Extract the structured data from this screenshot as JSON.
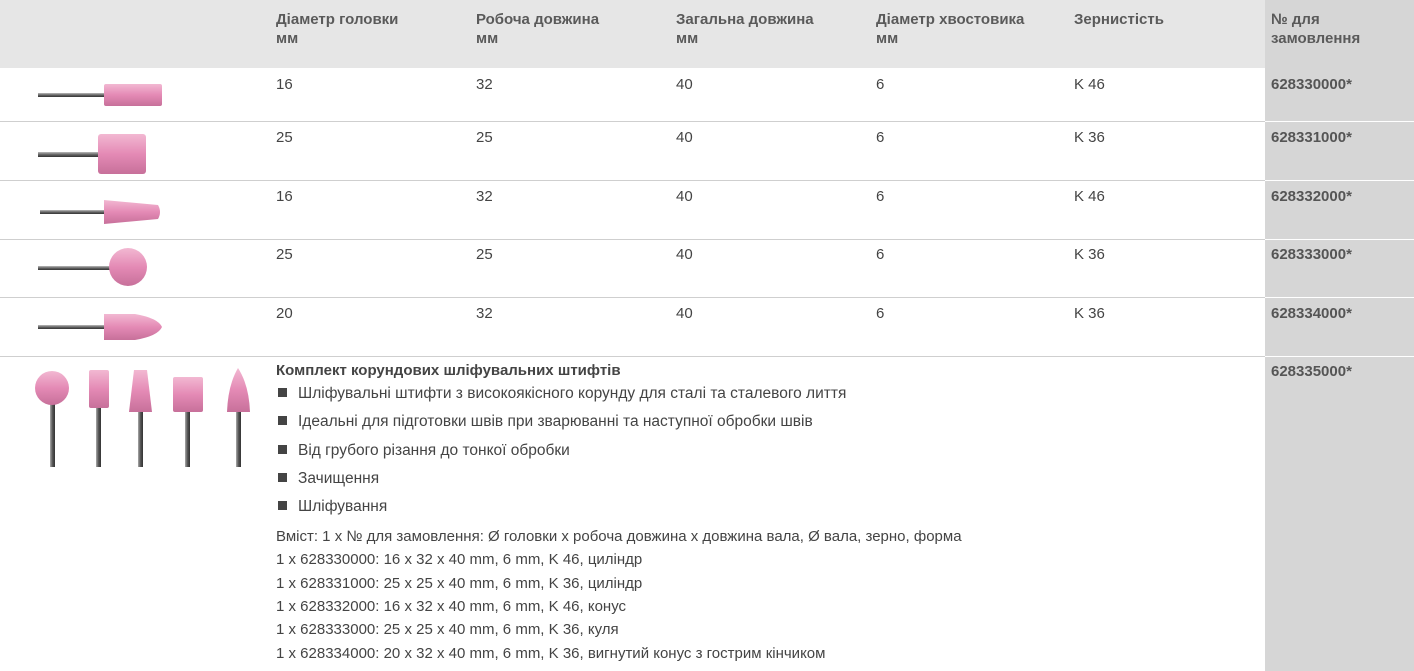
{
  "table": {
    "header": [
      [
        "Діаметр головки",
        "мм"
      ],
      [
        "Робоча довжина",
        "мм"
      ],
      [
        "Загальна довжина",
        "мм"
      ],
      [
        "Діаметр хвостовика",
        "мм"
      ],
      [
        "Зернистість"
      ],
      [
        "№ для",
        "замовлення"
      ]
    ],
    "rows": [
      [
        "16",
        "32",
        "40",
        "6",
        "K 46",
        "628330000*"
      ],
      [
        "25",
        "25",
        "40",
        "6",
        "K 36",
        "628331000*"
      ],
      [
        "16",
        "32",
        "40",
        "6",
        "K 46",
        "628332000*"
      ],
      [
        "25",
        "25",
        "40",
        "6",
        "K 36",
        "628333000*"
      ],
      [
        "20",
        "32",
        "40",
        "6",
        "K 36",
        "628334000*"
      ]
    ]
  },
  "kit": {
    "title": "Комплект корундових шліфувальних штифтів",
    "bullets": [
      "Шліфувальні штифти з високоякісного корунду для сталі та сталевого лиття",
      "Ідеальні для підготовки швів при зварюванні та наступної обробки швів",
      "Від грубого різання до тонкої обробки",
      "Зачищення",
      "Шліфування"
    ],
    "content": [
      "Вміст: 1 x № для замовлення: Ø головки x робоча довжина x довжина вала, Ø вала, зерно, форма",
      "1 x 628330000: 16 x 32 x 40 mm, 6 mm, K 46, циліндр",
      "1 x 628331000: 25 x 25 x 40 mm, 6 mm, K 36, циліндр",
      "1 x 628332000: 16 x 32 x 40 mm, 6 mm, K 46, конус",
      "1 x 628333000: 25 x 25 x 40 mm, 6 mm, K 36, куля",
      "1 x 628334000: 20 x 32 x 40 mm, 6 mm, K 36, вигнутий конус з гострим кінчиком"
    ],
    "order": "628335000*"
  }
}
